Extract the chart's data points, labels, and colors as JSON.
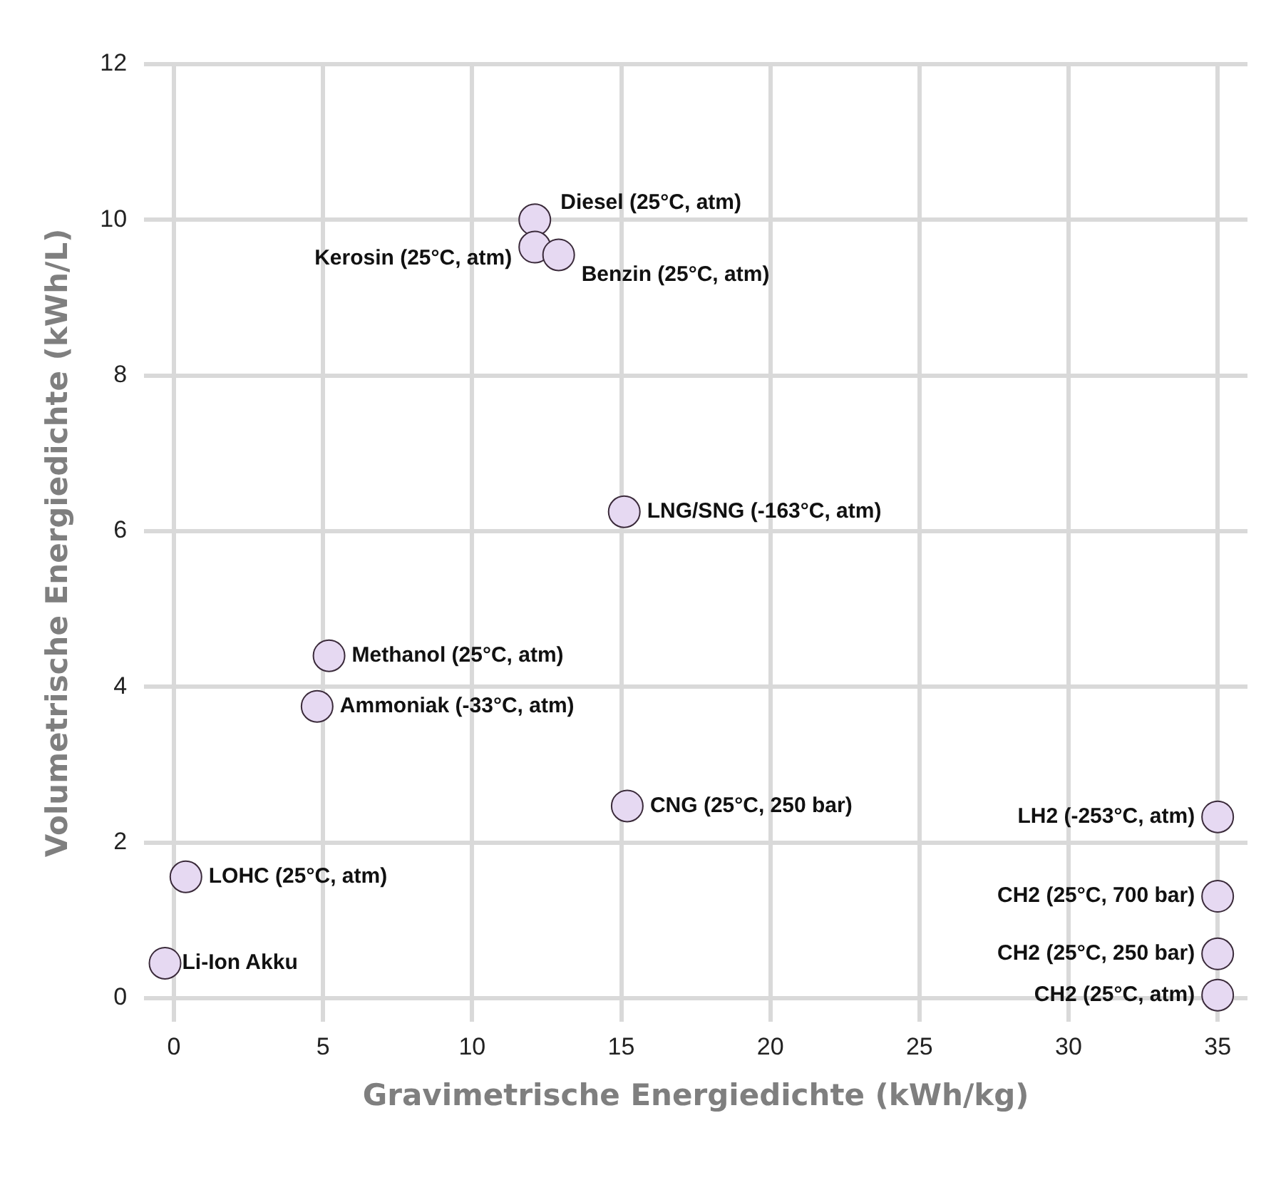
{
  "chart_data": {
    "type": "scatter",
    "xlabel": "Gravimetrische Energiedichte (kWh/kg)",
    "ylabel": "Volumetrische Energiedichte (kWh/L)",
    "xlim": [
      -1,
      36
    ],
    "xticks": [
      0,
      5,
      10,
      15,
      20,
      25,
      30,
      35
    ],
    "ylim": [
      -0.3,
      12
    ],
    "yticks": [
      0,
      2,
      4,
      6,
      8,
      10,
      12
    ],
    "grid": true,
    "marker": "circle",
    "legend": false,
    "series": [
      {
        "color": "#e6d9f2",
        "x": [
          12.1,
          12.1,
          12.9,
          15.1,
          5.2,
          4.8,
          15.2,
          35.0,
          35.0,
          35.0,
          35.0,
          0.4,
          -0.3
        ],
        "values": [
          10.0,
          9.65,
          9.55,
          6.25,
          4.4,
          3.75,
          2.47,
          2.33,
          1.31,
          0.57,
          0.04,
          1.56,
          0.45
        ]
      }
    ],
    "annotations": [
      {
        "text": "Diesel (25°C, atm)",
        "x": 12.1,
        "y": 10.0
      },
      {
        "text": "Kerosin (25°C, atm)",
        "x": 12.1,
        "y": 9.65
      },
      {
        "text": "Benzin (25°C, atm)",
        "x": 12.9,
        "y": 9.55
      },
      {
        "text": "LNG/SNG (-163°C, atm)",
        "x": 15.1,
        "y": 6.25
      },
      {
        "text": "Methanol (25°C, atm)",
        "x": 5.2,
        "y": 4.4
      },
      {
        "text": "Ammoniak (-33°C, atm)",
        "x": 4.8,
        "y": 3.75
      },
      {
        "text": "CNG (25°C, 250 bar)",
        "x": 15.2,
        "y": 2.47
      },
      {
        "text": "LH2 (-253°C, atm)",
        "x": 35.0,
        "y": 2.33
      },
      {
        "text": "CH2 (25°C, 700 bar)",
        "x": 35.0,
        "y": 1.31
      },
      {
        "text": "CH2 (25°C, 250 bar)",
        "x": 35.0,
        "y": 0.57
      },
      {
        "text": "CH2 (25°C, atm)",
        "x": 35.0,
        "y": 0.04
      },
      {
        "text": "LOHC (25°C, atm)",
        "x": 0.4,
        "y": 1.56
      },
      {
        "text": "Li-Ion Akku",
        "x": -0.3,
        "y": 0.45
      }
    ]
  }
}
